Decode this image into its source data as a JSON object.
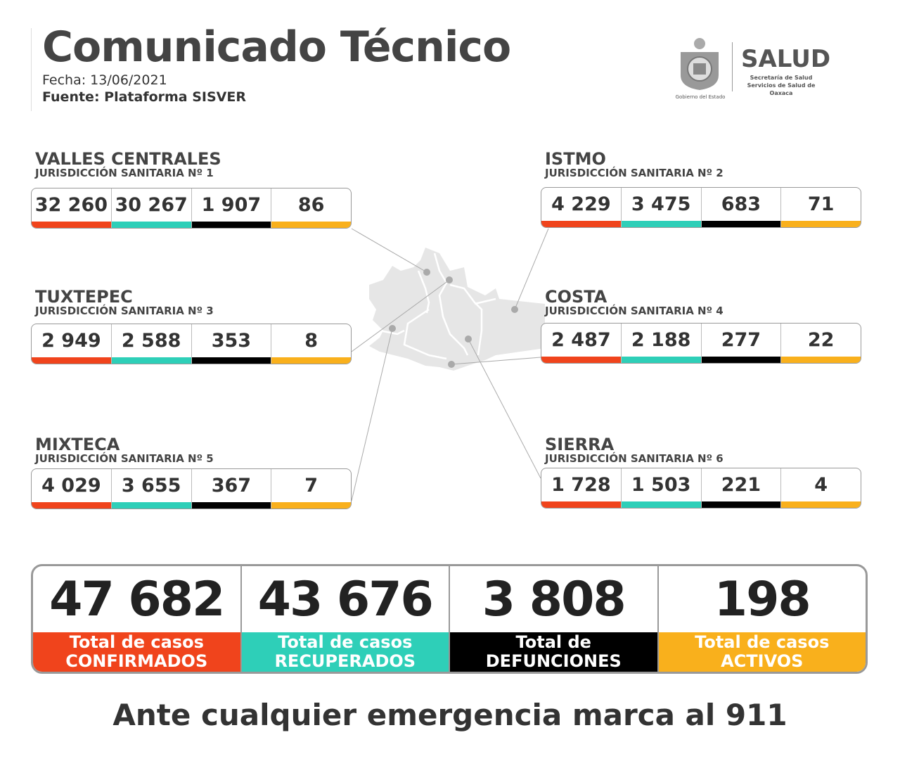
{
  "header": {
    "title": "Comunicado Técnico",
    "fecha": "Fecha: 13/06/2021",
    "fuente": "Fuente: Plataforma SISVER"
  },
  "logo": {
    "gobierno": "Gobierno del Estado",
    "salud": "SALUD",
    "line1": "Secretaría de Salud",
    "line2": "Servicios de Salud de Oaxaca"
  },
  "colors": {
    "confirmados": "#f0441c",
    "recuperados": "#2ecfb8",
    "defunciones": "#000000",
    "activos": "#f9b01c"
  },
  "regions": [
    {
      "name": "VALLES CENTRALES",
      "sub": "JURISDICCIÓN SANITARIA Nº 1",
      "values": [
        "32 260",
        "30 267",
        "1 907",
        "86"
      ]
    },
    {
      "name": "ISTMO",
      "sub": "JURISDICCIÓN SANITARIA Nº 2",
      "values": [
        "4 229",
        "3 475",
        "683",
        "71"
      ]
    },
    {
      "name": "TUXTEPEC",
      "sub": "JURISDICCIÓN SANITARIA Nº 3",
      "values": [
        "2 949",
        "2 588",
        "353",
        "8"
      ]
    },
    {
      "name": "COSTA",
      "sub": "JURISDICCIÓN SANITARIA Nº 4",
      "values": [
        "2 487",
        "2 188",
        "277",
        "22"
      ]
    },
    {
      "name": "MIXTECA",
      "sub": "JURISDICCIÓN SANITARIA Nº 5",
      "values": [
        "4 029",
        "3 655",
        "367",
        "7"
      ]
    },
    {
      "name": "SIERRA",
      "sub": "JURISDICCIÓN SANITARIA Nº 6",
      "values": [
        "1 728",
        "1 503",
        "221",
        "4"
      ]
    }
  ],
  "totals": [
    {
      "value": "47 682",
      "l1": "Total de casos",
      "l2": "CONFIRMADOS"
    },
    {
      "value": "43 676",
      "l1": "Total de casos",
      "l2": "RECUPERADOS"
    },
    {
      "value": "3 808",
      "l1": "Total de",
      "l2": "DEFUNCIONES"
    },
    {
      "value": "198",
      "l1": "Total de casos",
      "l2": "ACTIVOS"
    }
  ],
  "footer": "Ante cualquier emergencia marca al 911"
}
